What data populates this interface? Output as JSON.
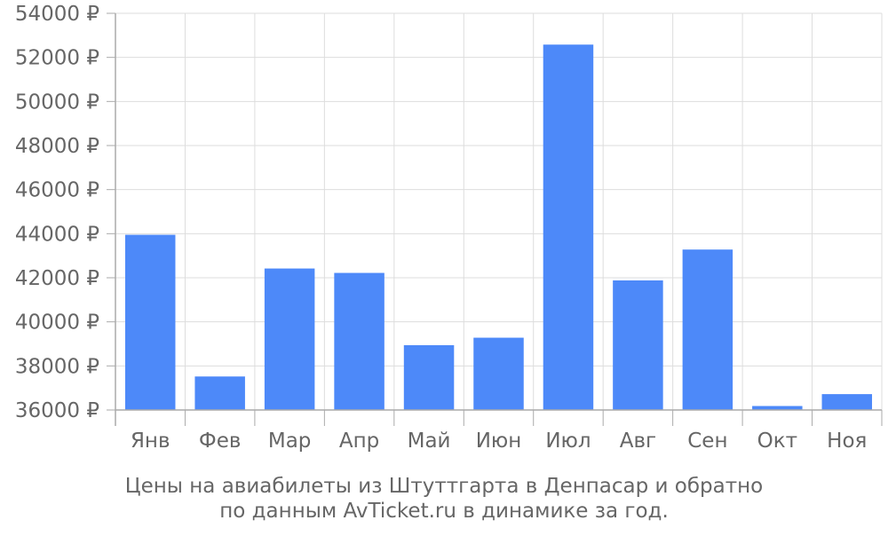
{
  "chart_data": {
    "type": "bar",
    "categories": [
      "Янв",
      "Фев",
      "Мар",
      "Апр",
      "Май",
      "Июн",
      "Июл",
      "Авг",
      "Сен",
      "Окт",
      "Ноя"
    ],
    "values": [
      43950,
      37520,
      42420,
      42220,
      38940,
      39280,
      52580,
      41880,
      43280,
      36180,
      36720
    ],
    "ylim": [
      36000,
      54000
    ],
    "yticks": [
      36000,
      38000,
      40000,
      42000,
      44000,
      46000,
      48000,
      50000,
      52000,
      54000
    ],
    "ytick_labels": [
      "36000 ₽",
      "38000 ₽",
      "40000 ₽",
      "42000 ₽",
      "44000 ₽",
      "46000 ₽",
      "48000 ₽",
      "50000 ₽",
      "52000 ₽",
      "54000 ₽"
    ],
    "grid": true,
    "bar_color": "#4d89f9",
    "grid_color": "#dddddd",
    "axis_color": "#aaaaaa",
    "text_color": "#666666"
  },
  "caption": {
    "line1": "Цены на авиабилеты из Штуттгарта в Денпасар и обратно",
    "line2": "по данным AvTicket.ru в динамике за год."
  }
}
